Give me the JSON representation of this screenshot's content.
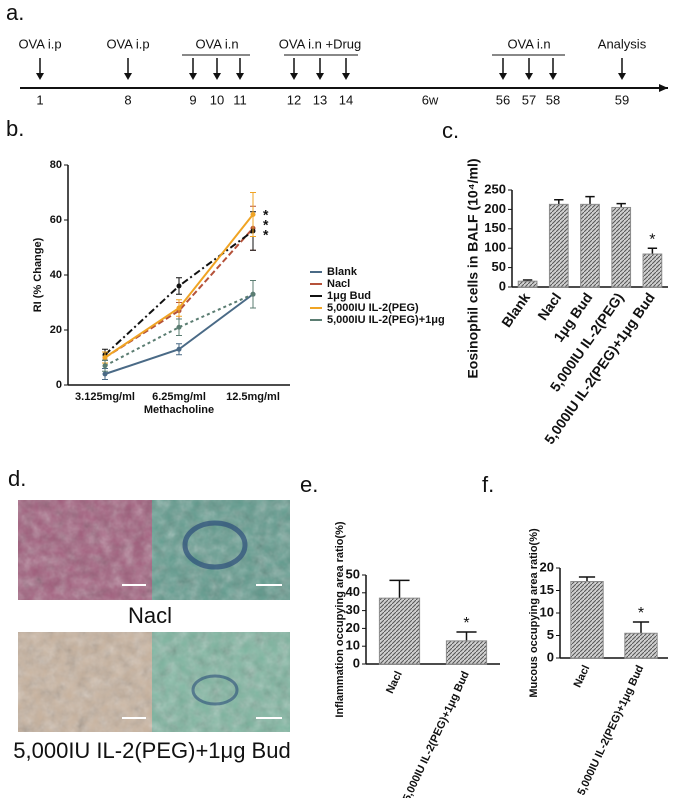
{
  "timeline": {
    "label": "a.",
    "top_labels": [
      "OVA i.p",
      "OVA i.p",
      "OVA i.n",
      "OVA i.n +Drug",
      "OVA i.n",
      "Analysis"
    ],
    "day_labels": [
      "1",
      "8",
      "9",
      "10",
      "11",
      "12",
      "13",
      "14",
      "6w",
      "56",
      "57",
      "58",
      "59"
    ]
  },
  "micrographs": {
    "label": "d.",
    "captions": [
      "Nacl",
      "5,000IU IL-2(PEG)+1μg Bud"
    ]
  },
  "chart_data": [
    {
      "type": "line",
      "label": "b.",
      "ylabel": "RI (% Change)",
      "xlabel": "Methacholine",
      "categories": [
        "3.125mg/ml",
        "6.25mg/ml",
        "12.5mg/ml"
      ],
      "ylim": [
        0,
        80
      ],
      "yticks": [
        0,
        20,
        40,
        60,
        80
      ],
      "legend": "right",
      "annotations": [
        "*",
        "*",
        "*"
      ],
      "series": [
        {
          "name": "Blank",
          "color": "#4a6a86",
          "linestyle": "solid",
          "values": [
            4,
            13,
            33
          ],
          "errors": [
            2,
            2,
            5
          ]
        },
        {
          "name": "Nacl",
          "color": "#b5523a",
          "linestyle": "dashed",
          "values": [
            10,
            27,
            57
          ],
          "errors": [
            2,
            3,
            8
          ]
        },
        {
          "name": "1μg Bud",
          "color": "#111111",
          "linestyle": "dashdot",
          "values": [
            11,
            36,
            56
          ],
          "errors": [
            2,
            3,
            7
          ]
        },
        {
          "name": "5,000IU IL-2(PEG)",
          "color": "#f0a424",
          "linestyle": "solid",
          "values": [
            10,
            28,
            62
          ],
          "errors": [
            2,
            3,
            8
          ]
        },
        {
          "name": "5,000IU IL-2(PEG)+1μg",
          "color": "#5b7d72",
          "linestyle": "dotted",
          "values": [
            7,
            21,
            33
          ],
          "errors": [
            2,
            3,
            5
          ]
        }
      ]
    },
    {
      "type": "bar",
      "label": "c.",
      "ylabel": "Eosinophil cells in BALF (10⁴/ml)",
      "categories": [
        "Blank",
        "Nacl",
        "1μg Bud",
        "5,000IU IL-2(PEG)",
        "5,000IU IL-2(PEG)+1μg Bud"
      ],
      "values": [
        15,
        213,
        213,
        205,
        85
      ],
      "errors": [
        3,
        12,
        20,
        10,
        15
      ],
      "color": "#8c8c8c",
      "ylim": [
        0,
        250
      ],
      "yticks": [
        0,
        50,
        100,
        150,
        200,
        250
      ],
      "annotations": [
        "*"
      ]
    },
    {
      "type": "bar",
      "label": "e.",
      "ylabel": "Inflammation occupying area ratio(%)",
      "categories": [
        "Nacl",
        "5,000IU IL-2(PEG)+1μg Bud"
      ],
      "values": [
        37,
        13
      ],
      "errors": [
        10,
        5
      ],
      "color": "#8c8c8c",
      "ylim": [
        0,
        50
      ],
      "yticks": [
        0,
        10,
        20,
        30,
        40,
        50
      ],
      "annotations": [
        "*"
      ]
    },
    {
      "type": "bar",
      "label": "f.",
      "ylabel": "Mucous occupying area ratio(%)",
      "categories": [
        "Nacl",
        "5,000IU IL-2(PEG)+1μg Bud"
      ],
      "values": [
        17,
        5.5
      ],
      "errors": [
        1,
        2.5
      ],
      "color": "#8c8c8c",
      "ylim": [
        0,
        20
      ],
      "yticks": [
        0,
        5,
        10,
        15,
        20
      ],
      "annotations": [
        "*"
      ]
    }
  ]
}
